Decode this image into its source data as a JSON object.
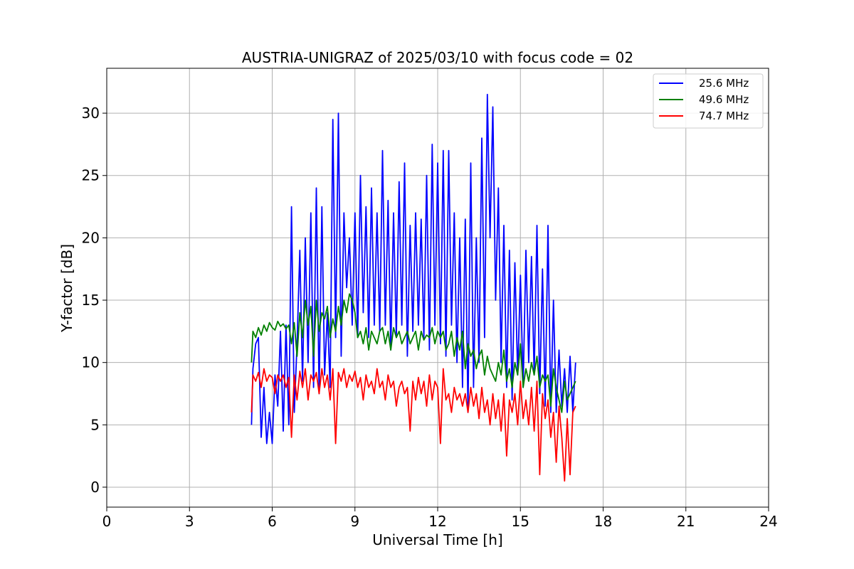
{
  "chart_data": {
    "type": "line",
    "title": "AUSTRIA-UNIGRAZ of 2025/03/10 with focus code = 02",
    "xlabel": "Universal Time [h]",
    "ylabel": "Y-factor [dB]",
    "xlim": [
      0,
      24
    ],
    "ylim": [
      -1.6,
      33.6
    ],
    "xticks": [
      0,
      3,
      6,
      9,
      12,
      15,
      18,
      21,
      24
    ],
    "xtick_labels": [
      "0",
      "3",
      "6",
      "9",
      "12",
      "15",
      "18",
      "21",
      "24"
    ],
    "yticks": [
      0,
      5,
      10,
      15,
      20,
      25,
      30
    ],
    "ytick_labels": [
      "0",
      "5",
      "10",
      "15",
      "20",
      "25",
      "30"
    ],
    "grid": true,
    "legend_position": "top-right",
    "x_range_of_data": [
      5.25,
      17.0
    ],
    "series": [
      {
        "name": "25.6 MHz",
        "color": "#0000ff",
        "x": [
          5.25,
          5.3,
          5.4,
          5.5,
          5.6,
          5.7,
          5.8,
          5.9,
          6.0,
          6.1,
          6.2,
          6.3,
          6.4,
          6.5,
          6.6,
          6.7,
          6.8,
          6.9,
          7.0,
          7.1,
          7.2,
          7.3,
          7.4,
          7.5,
          7.6,
          7.7,
          7.8,
          7.9,
          8.0,
          8.1,
          8.2,
          8.3,
          8.4,
          8.5,
          8.6,
          8.7,
          8.8,
          8.9,
          9.0,
          9.1,
          9.2,
          9.3,
          9.4,
          9.5,
          9.6,
          9.7,
          9.8,
          9.9,
          10.0,
          10.1,
          10.2,
          10.3,
          10.4,
          10.5,
          10.6,
          10.7,
          10.8,
          10.9,
          11.0,
          11.1,
          11.2,
          11.3,
          11.4,
          11.5,
          11.6,
          11.7,
          11.8,
          11.9,
          12.0,
          12.1,
          12.2,
          12.3,
          12.4,
          12.5,
          12.6,
          12.7,
          12.8,
          12.9,
          13.0,
          13.1,
          13.2,
          13.3,
          13.4,
          13.5,
          13.6,
          13.7,
          13.8,
          13.9,
          14.0,
          14.1,
          14.2,
          14.3,
          14.4,
          14.5,
          14.6,
          14.7,
          14.8,
          14.9,
          15.0,
          15.1,
          15.2,
          15.3,
          15.4,
          15.5,
          15.6,
          15.7,
          15.8,
          15.9,
          16.0,
          16.1,
          16.2,
          16.3,
          16.4,
          16.5,
          16.6,
          16.7,
          16.8,
          16.9,
          17.0
        ],
        "y": [
          5.0,
          9.5,
          11.5,
          12.0,
          4.0,
          8.0,
          3.5,
          6.0,
          3.5,
          9.0,
          6.5,
          12.5,
          4.5,
          13.0,
          5.0,
          22.5,
          6.0,
          11.5,
          19.0,
          8.5,
          20.0,
          10.0,
          22.0,
          8.0,
          24.0,
          7.5,
          22.5,
          9.0,
          14.0,
          8.0,
          29.5,
          12.0,
          30.0,
          10.5,
          22.0,
          16.0,
          20.0,
          13.0,
          22.0,
          12.0,
          25.0,
          14.0,
          22.5,
          12.0,
          24.0,
          13.0,
          22.0,
          12.5,
          27.0,
          13.0,
          23.0,
          11.0,
          22.0,
          12.0,
          24.5,
          13.0,
          26.0,
          10.5,
          21.0,
          12.5,
          22.0,
          13.0,
          21.5,
          12.0,
          25.0,
          11.0,
          27.5,
          13.0,
          26.0,
          11.5,
          27.0,
          10.5,
          27.0,
          13.0,
          22.0,
          10.0,
          20.0,
          8.0,
          21.5,
          6.0,
          26.0,
          8.0,
          20.0,
          10.0,
          28.0,
          12.0,
          31.5,
          20.0,
          30.5,
          15.0,
          24.0,
          10.0,
          21.0,
          8.0,
          19.0,
          7.0,
          18.0,
          9.0,
          17.0,
          8.0,
          19.0,
          10.0,
          18.5,
          9.0,
          21.0,
          7.5,
          17.5,
          6.5,
          21.0,
          6.0,
          15.0,
          6.0,
          11.0,
          6.5,
          9.5,
          6.0,
          10.5,
          6.0,
          10.0
        ]
      },
      {
        "name": "49.6 MHz",
        "color": "#008000",
        "x": [
          5.25,
          5.3,
          5.4,
          5.5,
          5.6,
          5.7,
          5.8,
          5.9,
          6.0,
          6.1,
          6.2,
          6.3,
          6.4,
          6.5,
          6.6,
          6.7,
          6.8,
          6.9,
          7.0,
          7.1,
          7.2,
          7.3,
          7.4,
          7.5,
          7.6,
          7.7,
          7.8,
          7.9,
          8.0,
          8.1,
          8.2,
          8.3,
          8.4,
          8.5,
          8.6,
          8.7,
          8.8,
          8.9,
          9.0,
          9.1,
          9.2,
          9.3,
          9.4,
          9.5,
          9.6,
          9.7,
          9.8,
          9.9,
          10.0,
          10.1,
          10.2,
          10.3,
          10.4,
          10.5,
          10.6,
          10.7,
          10.8,
          10.9,
          11.0,
          11.1,
          11.2,
          11.3,
          11.4,
          11.5,
          11.6,
          11.7,
          11.8,
          11.9,
          12.0,
          12.1,
          12.2,
          12.3,
          12.4,
          12.5,
          12.6,
          12.7,
          12.8,
          12.9,
          13.0,
          13.1,
          13.2,
          13.3,
          13.4,
          13.5,
          13.6,
          13.7,
          13.8,
          13.9,
          14.0,
          14.1,
          14.2,
          14.3,
          14.4,
          14.5,
          14.6,
          14.7,
          14.8,
          14.9,
          15.0,
          15.1,
          15.2,
          15.3,
          15.4,
          15.5,
          15.6,
          15.7,
          15.8,
          15.9,
          16.0,
          16.1,
          16.2,
          16.3,
          16.4,
          16.5,
          16.6,
          16.7,
          16.8,
          16.9,
          17.0
        ],
        "y": [
          10.0,
          12.5,
          12.0,
          12.8,
          12.2,
          13.0,
          12.5,
          13.2,
          12.8,
          12.6,
          13.3,
          12.9,
          13.1,
          12.7,
          13.0,
          11.5,
          13.2,
          10.5,
          14.0,
          12.0,
          15.0,
          13.0,
          14.5,
          10.5,
          15.0,
          12.5,
          14.0,
          13.5,
          14.5,
          12.0,
          13.5,
          12.5,
          14.5,
          13.0,
          15.0,
          14.0,
          15.5,
          15.0,
          14.0,
          12.0,
          12.5,
          11.5,
          12.8,
          11.0,
          12.5,
          12.0,
          11.5,
          12.5,
          12.8,
          11.5,
          12.5,
          11.0,
          12.8,
          12.0,
          12.5,
          11.5,
          12.0,
          12.5,
          11.5,
          12.0,
          12.5,
          11.0,
          12.5,
          11.8,
          12.2,
          12.0,
          12.8,
          11.5,
          12.5,
          12.0,
          12.5,
          11.0,
          11.5,
          12.5,
          10.5,
          12.0,
          11.0,
          12.5,
          9.5,
          11.5,
          10.5,
          11.0,
          9.5,
          10.5,
          11.0,
          9.0,
          10.5,
          9.5,
          9.0,
          8.5,
          10.0,
          9.0,
          11.0,
          8.5,
          9.5,
          8.0,
          10.0,
          9.0,
          11.5,
          8.0,
          9.5,
          8.5,
          10.0,
          9.0,
          10.5,
          8.0,
          9.0,
          8.5,
          9.0,
          6.5,
          9.5,
          8.0,
          7.0,
          6.0,
          8.5,
          7.0,
          7.5,
          8.0,
          8.5
        ]
      },
      {
        "name": "74.7 MHz",
        "color": "#ff0000",
        "x": [
          5.25,
          5.3,
          5.4,
          5.5,
          5.6,
          5.7,
          5.8,
          5.9,
          6.0,
          6.1,
          6.2,
          6.3,
          6.4,
          6.5,
          6.6,
          6.7,
          6.8,
          6.9,
          7.0,
          7.1,
          7.2,
          7.3,
          7.4,
          7.5,
          7.6,
          7.7,
          7.8,
          7.9,
          8.0,
          8.1,
          8.2,
          8.3,
          8.4,
          8.5,
          8.6,
          8.7,
          8.8,
          8.9,
          9.0,
          9.1,
          9.2,
          9.3,
          9.4,
          9.5,
          9.6,
          9.7,
          9.8,
          9.9,
          10.0,
          10.1,
          10.2,
          10.3,
          10.4,
          10.5,
          10.6,
          10.7,
          10.8,
          10.9,
          11.0,
          11.1,
          11.2,
          11.3,
          11.4,
          11.5,
          11.6,
          11.7,
          11.8,
          11.9,
          12.0,
          12.1,
          12.2,
          12.3,
          12.4,
          12.5,
          12.6,
          12.7,
          12.8,
          12.9,
          13.0,
          13.1,
          13.2,
          13.3,
          13.4,
          13.5,
          13.6,
          13.7,
          13.8,
          13.9,
          14.0,
          14.1,
          14.2,
          14.3,
          14.4,
          14.5,
          14.6,
          14.7,
          14.8,
          14.9,
          15.0,
          15.1,
          15.2,
          15.3,
          15.4,
          15.5,
          15.6,
          15.7,
          15.8,
          15.9,
          16.0,
          16.1,
          16.2,
          16.3,
          16.4,
          16.5,
          16.6,
          16.7,
          16.8,
          16.9,
          17.0
        ],
        "y": [
          6.0,
          9.0,
          8.5,
          9.2,
          8.0,
          9.5,
          8.5,
          9.0,
          8.8,
          7.5,
          9.0,
          8.5,
          9.0,
          8.0,
          8.8,
          4.0,
          9.0,
          7.0,
          9.3,
          8.0,
          9.5,
          7.0,
          9.0,
          8.5,
          9.2,
          7.5,
          9.5,
          8.0,
          9.0,
          7.0,
          9.5,
          3.5,
          9.2,
          8.5,
          9.5,
          8.0,
          9.0,
          8.5,
          9.3,
          8.0,
          8.8,
          7.0,
          9.0,
          8.0,
          8.5,
          7.5,
          9.5,
          8.0,
          8.5,
          7.0,
          9.0,
          8.0,
          8.5,
          6.5,
          8.0,
          8.5,
          7.5,
          8.0,
          4.5,
          8.5,
          7.0,
          8.8,
          7.5,
          8.5,
          6.5,
          9.0,
          7.0,
          8.5,
          8.0,
          3.5,
          9.5,
          7.0,
          7.5,
          6.0,
          8.0,
          7.0,
          7.5,
          6.5,
          7.5,
          6.0,
          8.0,
          6.5,
          7.5,
          5.5,
          8.0,
          6.0,
          7.0,
          5.0,
          7.5,
          5.5,
          7.0,
          4.5,
          7.5,
          2.5,
          7.0,
          6.0,
          7.5,
          5.0,
          8.5,
          5.5,
          7.0,
          5.0,
          8.0,
          4.5,
          8.5,
          1.0,
          7.5,
          5.5,
          7.0,
          4.0,
          6.0,
          2.0,
          6.5,
          4.0,
          0.5,
          5.5,
          1.0,
          6.0,
          6.5
        ]
      }
    ]
  }
}
